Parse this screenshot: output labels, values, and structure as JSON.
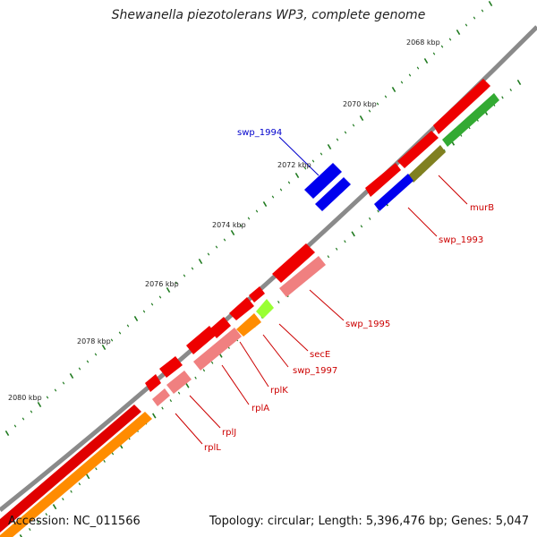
{
  "title": "Shewanella piezotolerans WP3, complete genome",
  "accession": "Accession: NC_011566",
  "summary": "Topology: circular; Length: 5,396,476 bp; Genes: 5,047",
  "tick_labels": [
    "2068 kbp",
    "2070 kbp",
    "2072 kbp",
    "2074 kbp",
    "2076 kbp",
    "2078 kbp",
    "2080 kbp"
  ],
  "genes": [
    {
      "name": "swp_1994",
      "color": "#0000cc"
    },
    {
      "name": "murB",
      "color": "#cc0000"
    },
    {
      "name": "swp_1993",
      "color": "#cc0000"
    },
    {
      "name": "swp_1995",
      "color": "#cc0000"
    },
    {
      "name": "secE",
      "color": "#cc0000"
    },
    {
      "name": "swp_1997",
      "color": "#cc0000"
    },
    {
      "name": "rplK",
      "color": "#cc0000"
    },
    {
      "name": "rplA",
      "color": "#cc0000"
    },
    {
      "name": "rplJ",
      "color": "#cc0000"
    },
    {
      "name": "rplL",
      "color": "#cc0000"
    }
  ],
  "colors": {
    "cds": "#ff0000",
    "cds_pale": "#f08080",
    "blue": "#0000ff",
    "green": "#33aa33",
    "olive": "#808020",
    "orange": "#ff8c00",
    "lime": "#99ff33",
    "backbone": "#808080",
    "tick": "#006400"
  }
}
